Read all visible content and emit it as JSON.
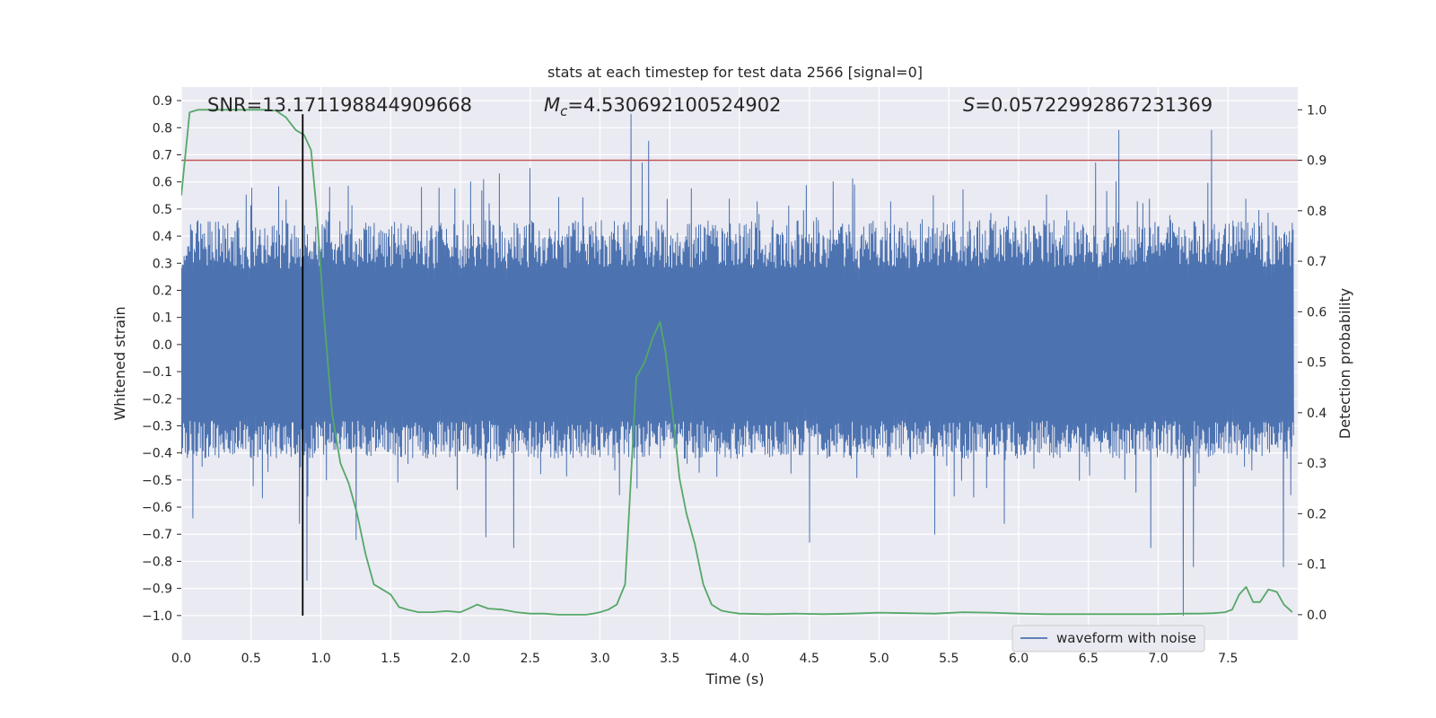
{
  "chart_data": {
    "type": "line",
    "title": "stats at each timestep for test data 2566 [signal=0]",
    "xlabel": "Time (s)",
    "ylabel_left": "Whitened strain",
    "ylabel_right": "Detection probability",
    "xlim": [
      0.0,
      8.0
    ],
    "ylim_left": [
      -1.09,
      0.95
    ],
    "ylim_right": [
      -0.05,
      1.045
    ],
    "x_ticks": [
      "0.0",
      "0.5",
      "1.0",
      "1.5",
      "2.0",
      "2.5",
      "3.0",
      "3.5",
      "4.0",
      "4.5",
      "5.0",
      "5.5",
      "6.0",
      "6.5",
      "7.0",
      "7.5"
    ],
    "y_left_ticks": [
      "0.9",
      "0.8",
      "0.7",
      "0.6",
      "0.5",
      "0.4",
      "0.3",
      "0.2",
      "0.1",
      "0.0",
      "-0.1",
      "-0.2",
      "-0.3",
      "-0.4",
      "-0.5",
      "-0.6",
      "-0.7",
      "-0.8",
      "-0.9",
      "-1.0"
    ],
    "y_right_ticks": [
      "1.0",
      "0.9",
      "0.8",
      "0.7",
      "0.6",
      "0.5",
      "0.4",
      "0.3",
      "0.2",
      "0.1",
      "0.0"
    ],
    "annotations": {
      "snr": "SNR=13.171198844909668",
      "mc_symbol": "M",
      "mc_sub": "c",
      "mc_value": "=4.530692100524902",
      "s_symbol": "S",
      "s_value": "=0.05722992867231369"
    },
    "threshold": {
      "value_right_axis": 0.9,
      "color": "#c44e52"
    },
    "marker_line": {
      "x": 0.87,
      "y_from": -1.0,
      "y_to": 0.85,
      "color": "#000000"
    },
    "series": [
      {
        "name": "waveform with noise",
        "axis": "left",
        "color": "#4c72b0",
        "band_envelope": {
          "lower": -0.4,
          "upper": 0.45,
          "note": "dense noise; peaks listed below"
        },
        "peaks": [
          {
            "x": 0.08,
            "y": -0.64
          },
          {
            "x": 0.85,
            "y": -0.66
          },
          {
            "x": 0.9,
            "y": -0.87
          },
          {
            "x": 1.25,
            "y": -0.72
          },
          {
            "x": 1.72,
            "y": 0.58
          },
          {
            "x": 2.18,
            "y": -0.71
          },
          {
            "x": 2.28,
            "y": 0.63
          },
          {
            "x": 2.38,
            "y": -0.75
          },
          {
            "x": 2.5,
            "y": 0.65
          },
          {
            "x": 3.22,
            "y": 0.85
          },
          {
            "x": 3.3,
            "y": 0.67
          },
          {
            "x": 3.35,
            "y": 0.75
          },
          {
            "x": 4.5,
            "y": -0.73
          },
          {
            "x": 5.4,
            "y": -0.7
          },
          {
            "x": 5.9,
            "y": -0.66
          },
          {
            "x": 6.55,
            "y": 0.67
          },
          {
            "x": 6.72,
            "y": 0.79
          },
          {
            "x": 6.95,
            "y": -0.75
          },
          {
            "x": 7.18,
            "y": -1.0
          },
          {
            "x": 7.25,
            "y": -0.82
          },
          {
            "x": 7.38,
            "y": 0.79
          },
          {
            "x": 7.9,
            "y": -0.82
          }
        ]
      },
      {
        "name": "detection probability",
        "axis": "right",
        "color": "#55a868",
        "x": [
          0.0,
          0.06,
          0.12,
          0.2,
          0.3,
          0.4,
          0.5,
          0.6,
          0.68,
          0.75,
          0.82,
          0.88,
          0.93,
          0.97,
          1.02,
          1.08,
          1.14,
          1.2,
          1.26,
          1.32,
          1.38,
          1.44,
          1.5,
          1.56,
          1.62,
          1.7,
          1.8,
          1.9,
          2.0,
          2.06,
          2.12,
          2.2,
          2.3,
          2.4,
          2.5,
          2.6,
          2.7,
          2.8,
          2.9,
          2.95,
          3.0,
          3.06,
          3.12,
          3.18,
          3.22,
          3.26,
          3.32,
          3.38,
          3.43,
          3.47,
          3.52,
          3.57,
          3.62,
          3.68,
          3.74,
          3.8,
          3.87,
          3.93,
          4.0,
          4.2,
          4.4,
          4.6,
          4.8,
          5.0,
          5.2,
          5.4,
          5.6,
          5.8,
          6.0,
          6.2,
          6.4,
          6.6,
          6.8,
          7.0,
          7.2,
          7.3,
          7.4,
          7.48,
          7.53,
          7.58,
          7.63,
          7.68,
          7.73,
          7.79,
          7.85,
          7.9,
          7.96
        ],
        "values": [
          0.83,
          0.995,
          1.0,
          1.0,
          1.0,
          1.0,
          1.0,
          1.0,
          0.998,
          0.985,
          0.96,
          0.95,
          0.92,
          0.8,
          0.6,
          0.4,
          0.3,
          0.26,
          0.2,
          0.12,
          0.06,
          0.05,
          0.04,
          0.015,
          0.01,
          0.005,
          0.005,
          0.007,
          0.005,
          0.012,
          0.02,
          0.012,
          0.01,
          0.005,
          0.002,
          0.002,
          0.0,
          0.0,
          0.0,
          0.002,
          0.005,
          0.01,
          0.02,
          0.06,
          0.26,
          0.47,
          0.5,
          0.55,
          0.58,
          0.52,
          0.4,
          0.27,
          0.2,
          0.14,
          0.06,
          0.02,
          0.008,
          0.005,
          0.002,
          0.001,
          0.002,
          0.001,
          0.002,
          0.004,
          0.003,
          0.002,
          0.005,
          0.004,
          0.002,
          0.001,
          0.001,
          0.001,
          0.001,
          0.001,
          0.002,
          0.002,
          0.003,
          0.005,
          0.01,
          0.04,
          0.055,
          0.025,
          0.025,
          0.05,
          0.045,
          0.02,
          0.005
        ]
      }
    ],
    "legend": {
      "entries": [
        "waveform with noise"
      ],
      "placement": "lower-right"
    }
  }
}
